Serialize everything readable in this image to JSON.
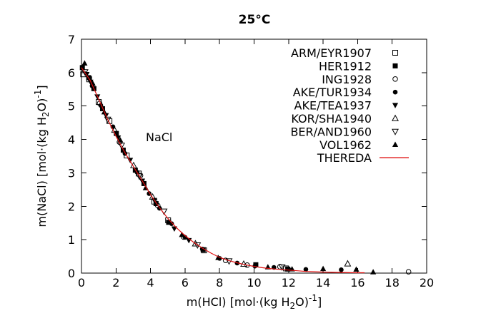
{
  "chart_data": {
    "type": "scatter",
    "title": "25°C",
    "annotation": {
      "text": "NaCl",
      "x": 4.5,
      "y": 3.95
    },
    "xlabel_parts": [
      {
        "t": "m(HCl) [mol·(kg H"
      },
      {
        "t": "2",
        "style": "sub"
      },
      {
        "t": "O)"
      },
      {
        "t": "-1",
        "style": "sup"
      },
      {
        "t": "]"
      }
    ],
    "ylabel_parts": [
      {
        "t": "m(NaCl) [mol·(kg H"
      },
      {
        "t": "2",
        "style": "sub"
      },
      {
        "t": "O)"
      },
      {
        "t": "-1",
        "style": "sup"
      },
      {
        "t": "]"
      }
    ],
    "xlim": [
      0,
      20
    ],
    "ylim": [
      0,
      7
    ],
    "xticks": [
      0,
      2,
      4,
      6,
      8,
      10,
      12,
      14,
      16,
      18,
      20
    ],
    "yticks": [
      0,
      1,
      2,
      3,
      4,
      5,
      6,
      7
    ],
    "grid": false,
    "legend_position": "top-right-inside",
    "colors": {
      "marker": "#000000",
      "curve": "#e01010",
      "frame": "#000000",
      "background": "#ffffff"
    },
    "series": [
      {
        "name": "ARM/EYR1907",
        "marker": "square-open",
        "color": "#000000",
        "points": [
          [
            0.1,
            5.95
          ],
          [
            0.45,
            5.8
          ],
          [
            1.0,
            5.12
          ],
          [
            1.62,
            4.55
          ],
          [
            2.62,
            3.52
          ],
          [
            3.32,
            2.98
          ],
          [
            4.22,
            2.14
          ],
          [
            5.02,
            1.58
          ],
          [
            7.1,
            0.68
          ],
          [
            11.85,
            0.14
          ]
        ]
      },
      {
        "name": "HER1912",
        "marker": "square-filled",
        "color": "#000000",
        "points": [
          [
            0.05,
            6.15
          ],
          [
            0.42,
            5.85
          ],
          [
            0.72,
            5.52
          ],
          [
            1.22,
            4.92
          ],
          [
            2.02,
            4.18
          ],
          [
            2.42,
            3.68
          ],
          [
            3.12,
            3.08
          ],
          [
            3.62,
            2.68
          ],
          [
            4.32,
            2.08
          ],
          [
            5.05,
            1.52
          ],
          [
            7.05,
            0.7
          ],
          [
            10.1,
            0.25
          ],
          [
            11.95,
            0.12
          ]
        ]
      },
      {
        "name": "ING1928",
        "marker": "circle-open",
        "color": "#000000",
        "points": [
          [
            1.05,
            5.08
          ],
          [
            2.2,
            3.92
          ],
          [
            3.42,
            2.92
          ],
          [
            4.42,
            2.02
          ],
          [
            5.92,
            1.08
          ],
          [
            8.35,
            0.38
          ],
          [
            9.6,
            0.24
          ],
          [
            11.5,
            0.19
          ],
          [
            18.95,
            0.04
          ]
        ]
      },
      {
        "name": "AKE/TUR1934",
        "marker": "circle-filled",
        "color": "#000000",
        "points": [
          [
            0.62,
            5.6
          ],
          [
            1.12,
            5.02
          ],
          [
            1.82,
            4.38
          ],
          [
            2.52,
            3.58
          ],
          [
            3.22,
            3.02
          ],
          [
            3.92,
            2.38
          ],
          [
            4.52,
            1.94
          ],
          [
            5.22,
            1.48
          ],
          [
            6.0,
            1.07
          ],
          [
            7.0,
            0.72
          ],
          [
            8.0,
            0.44
          ],
          [
            9.02,
            0.3
          ],
          [
            10.05,
            0.21
          ],
          [
            11.15,
            0.17
          ],
          [
            12.0,
            0.12
          ],
          [
            13.0,
            0.11
          ],
          [
            15.05,
            0.1
          ]
        ]
      },
      {
        "name": "AKE/TEA1937",
        "marker": "triangle-down-filled",
        "color": "#000000",
        "points": [
          [
            0.3,
            5.95
          ],
          [
            0.52,
            5.72
          ],
          [
            0.92,
            5.28
          ],
          [
            1.42,
            4.72
          ],
          [
            2.12,
            4.05
          ],
          [
            2.82,
            3.38
          ],
          [
            3.52,
            2.76
          ],
          [
            4.22,
            2.18
          ],
          [
            5.38,
            1.33
          ],
          [
            6.22,
            0.98
          ]
        ]
      },
      {
        "name": "KOR/SHA1940",
        "marker": "triangle-up-open",
        "color": "#000000",
        "points": [
          [
            1.92,
            4.28
          ],
          [
            3.02,
            3.22
          ],
          [
            4.12,
            2.28
          ],
          [
            6.6,
            0.88
          ],
          [
            9.4,
            0.27
          ],
          [
            15.42,
            0.28
          ]
        ]
      },
      {
        "name": "BER/AND1960",
        "marker": "triangle-down-open",
        "color": "#000000",
        "points": [
          [
            0.2,
            6.02
          ],
          [
            1.52,
            4.6
          ],
          [
            2.32,
            3.82
          ],
          [
            3.35,
            2.9
          ],
          [
            4.78,
            1.85
          ],
          [
            6.72,
            0.84
          ],
          [
            8.55,
            0.36
          ],
          [
            11.62,
            0.18
          ]
        ]
      },
      {
        "name": "VOL1962",
        "marker": "triangle-up-filled",
        "color": "#000000",
        "points": [
          [
            0.18,
            6.28
          ],
          [
            0.65,
            5.68
          ],
          [
            1.32,
            4.82
          ],
          [
            2.25,
            3.98
          ],
          [
            3.72,
            2.55
          ],
          [
            5.82,
            1.15
          ],
          [
            7.92,
            0.46
          ],
          [
            10.8,
            0.18
          ],
          [
            12.2,
            0.12
          ],
          [
            14.0,
            0.13
          ],
          [
            15.92,
            0.11
          ],
          [
            16.9,
            0.03
          ]
        ]
      },
      {
        "name": "THEREDA",
        "marker": "line",
        "color": "#e01010",
        "points": [
          [
            0,
            6.15
          ],
          [
            0.5,
            5.77
          ],
          [
            1,
            5.2
          ],
          [
            1.5,
            4.62
          ],
          [
            2,
            4.1
          ],
          [
            2.5,
            3.62
          ],
          [
            3,
            3.2
          ],
          [
            3.5,
            2.78
          ],
          [
            4,
            2.35
          ],
          [
            4.5,
            1.97
          ],
          [
            5,
            1.64
          ],
          [
            5.5,
            1.36
          ],
          [
            6,
            1.12
          ],
          [
            6.5,
            0.92
          ],
          [
            7,
            0.75
          ],
          [
            7.5,
            0.6
          ],
          [
            8,
            0.47
          ],
          [
            8.5,
            0.38
          ],
          [
            9,
            0.31
          ],
          [
            9.5,
            0.25
          ],
          [
            10,
            0.2
          ],
          [
            10.5,
            0.16
          ],
          [
            11,
            0.13
          ],
          [
            11.5,
            0.11
          ],
          [
            12,
            0.09
          ],
          [
            12.5,
            0.07
          ],
          [
            13,
            0.05
          ],
          [
            13.5,
            0.04
          ],
          [
            14,
            0.03
          ],
          [
            15,
            0.02
          ],
          [
            16,
            0.01
          ],
          [
            16.4,
            0.01
          ]
        ]
      }
    ]
  }
}
